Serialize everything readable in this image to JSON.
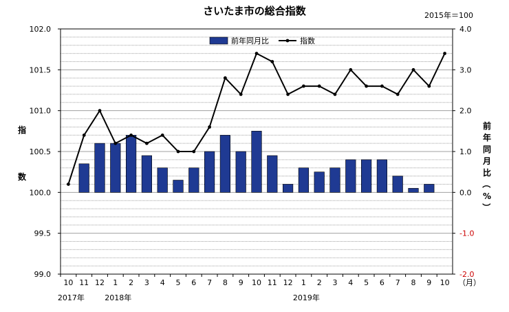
{
  "chart_data": {
    "type": "bar",
    "title": "さいたま市の総合指数",
    "base_note": "2015年＝100",
    "categories": [
      "10",
      "11",
      "12",
      "1",
      "2",
      "3",
      "4",
      "5",
      "6",
      "7",
      "8",
      "9",
      "10",
      "11",
      "12",
      "1",
      "2",
      "3",
      "4",
      "5",
      "6",
      "7",
      "8",
      "9",
      "10"
    ],
    "x_unit": "（月）",
    "year_labels": [
      {
        "label": "2017年",
        "index": 0
      },
      {
        "label": "2018年",
        "index": 3
      },
      {
        "label": "2019年",
        "index": 15
      }
    ],
    "series": [
      {
        "name": "前年同月比",
        "type": "bar",
        "axis": "right",
        "color": "#1f3a93",
        "values": [
          null,
          0.7,
          1.2,
          1.2,
          1.4,
          0.9,
          0.6,
          0.3,
          0.6,
          1.0,
          1.4,
          1.0,
          1.5,
          0.9,
          0.2,
          0.6,
          0.5,
          0.6,
          0.8,
          0.8,
          0.8,
          0.4,
          0.1,
          0.2,
          null
        ]
      },
      {
        "name": "指数",
        "type": "line",
        "axis": "left",
        "color": "#000000",
        "values": [
          100.1,
          100.7,
          101.0,
          100.6,
          100.7,
          100.6,
          100.7,
          100.5,
          100.5,
          100.8,
          101.4,
          101.2,
          101.7,
          101.6,
          101.2,
          101.3,
          101.3,
          101.2,
          101.5,
          101.3,
          101.3,
          101.2,
          101.5,
          101.3,
          101.7
        ]
      }
    ],
    "y_left": {
      "label": "指数",
      "min": 99.0,
      "max": 102.0,
      "step": 0.5,
      "ticks": [
        "99.0",
        "99.5",
        "100.0",
        "100.5",
        "101.0",
        "101.5",
        "102.0"
      ]
    },
    "y_right": {
      "label": "前年同月比（%）",
      "min": -2.0,
      "max": 4.0,
      "step": 1.0,
      "ticks": [
        "-2.0",
        "-1.0",
        "0.0",
        "1.0",
        "2.0",
        "3.0",
        "4.0"
      ]
    },
    "grid": true,
    "legend_position": "top-center"
  }
}
